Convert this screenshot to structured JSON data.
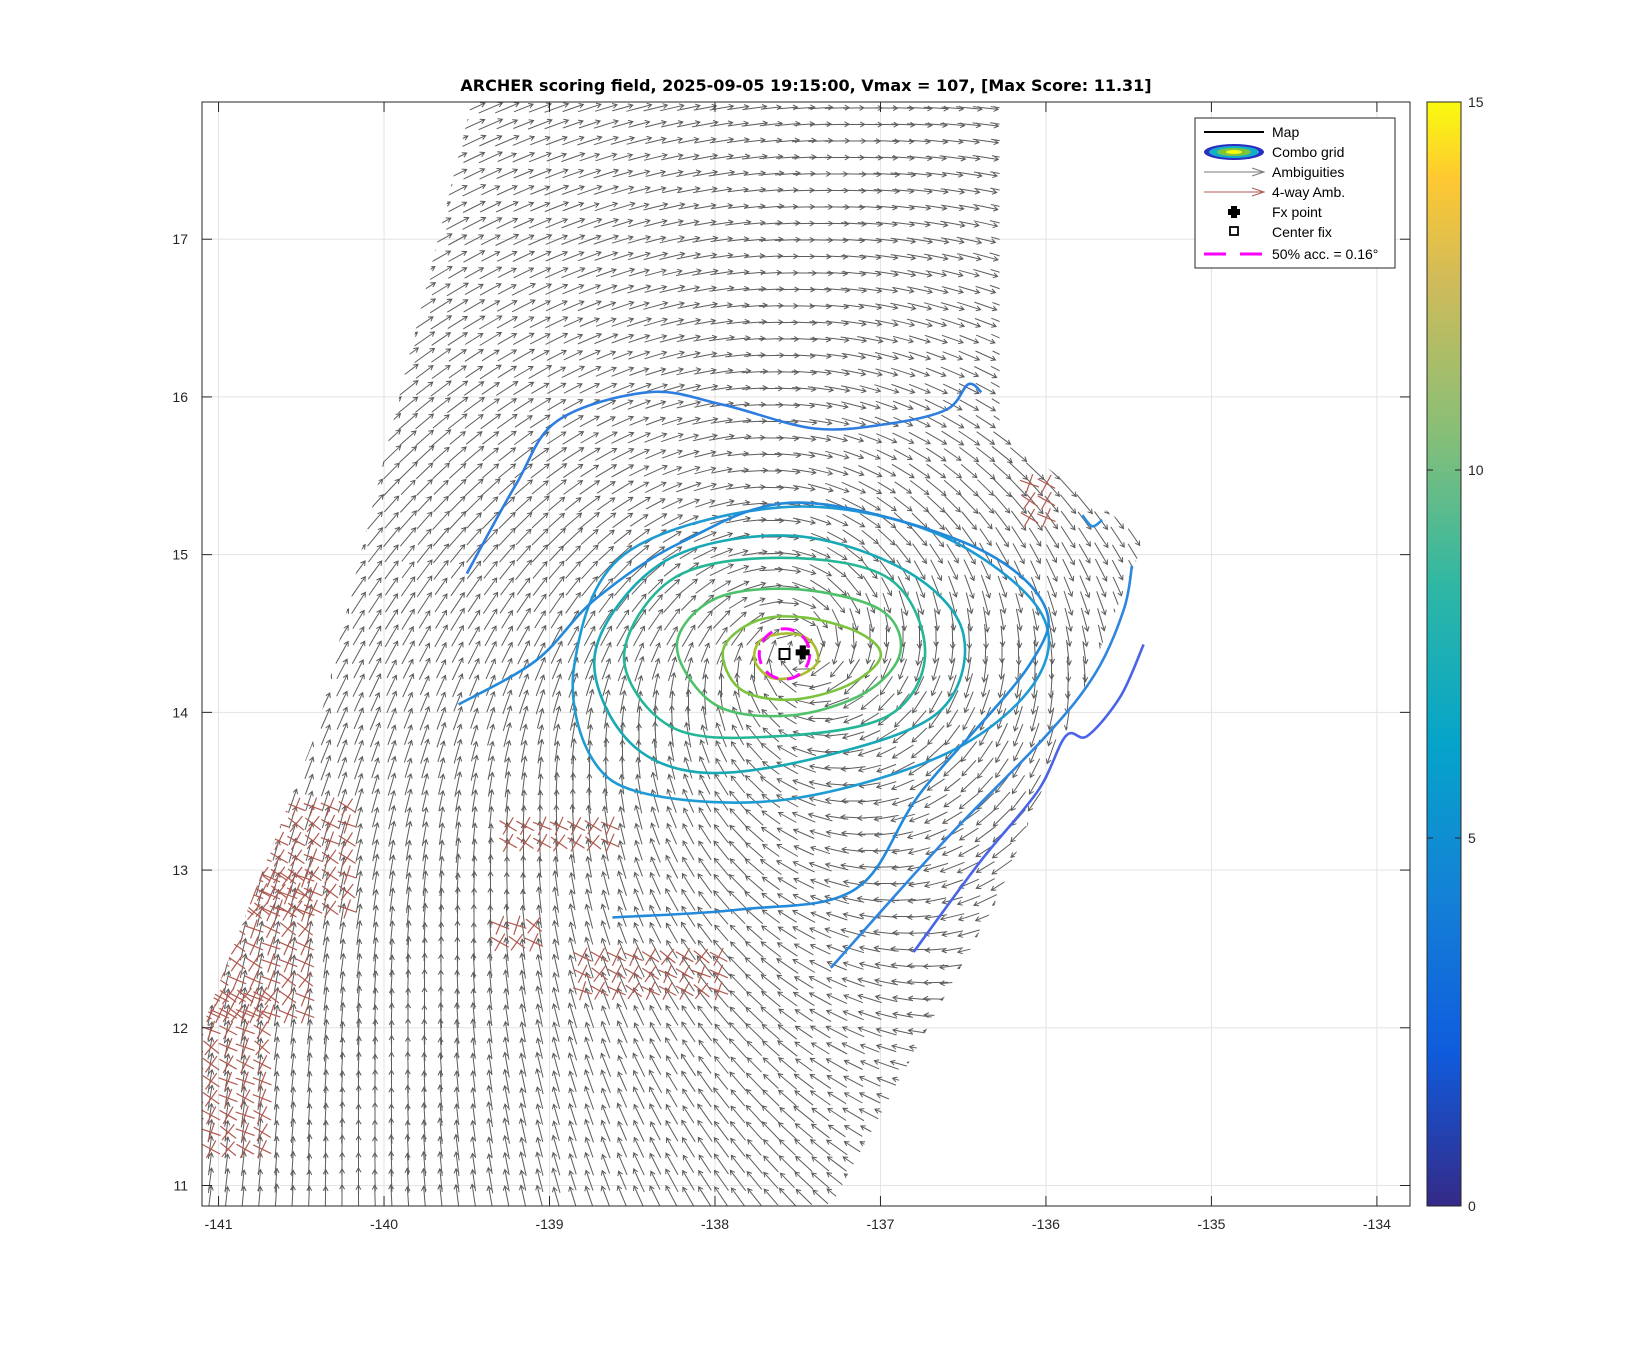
{
  "chart_data": {
    "type": "contour-quiver",
    "title": "ARCHER scoring field, 2025-09-05 19:15:00, Vmax = 107, [Max Score: 11.31]",
    "xlabel": "",
    "ylabel": "",
    "xlim": [
      -141.1,
      -133.8
    ],
    "ylim": [
      10.87,
      17.87
    ],
    "x_ticks": [
      -141,
      -140,
      -139,
      -138,
      -137,
      -136,
      -135,
      -134
    ],
    "y_ticks": [
      11,
      12,
      13,
      14,
      15,
      16,
      17
    ],
    "grid": true,
    "colorbar": {
      "min": 0,
      "max": 15,
      "ticks": [
        0,
        5,
        10,
        15
      ],
      "colormap": "parula"
    },
    "legend": {
      "placement": "top-right",
      "entries": [
        "Map",
        "Combo grid",
        "Ambiguities",
        "4-way Amb.",
        "Fx point",
        "Center fix",
        "50% acc. = 0.16°"
      ]
    },
    "fx_point": {
      "lon": -137.47,
      "lat": 14.38
    },
    "center_fix": {
      "lon": -137.58,
      "lat": 14.37
    },
    "accuracy_circle": {
      "lon": -137.58,
      "lat": 14.37,
      "radius_deg": 0.16
    },
    "vortex_center": {
      "lon": -137.5,
      "lat": 14.38
    },
    "swath": {
      "corners": [
        [
          -139.47,
          17.87
        ],
        [
          -136.28,
          17.87
        ],
        [
          -136.28,
          15.77
        ],
        [
          -135.4,
          15.1
        ],
        [
          -136.3,
          12.8
        ],
        [
          -137.3,
          10.87
        ],
        [
          -141.1,
          10.87
        ],
        [
          -141.1,
          12.0
        ],
        [
          -140.4,
          13.9
        ]
      ]
    },
    "contours": [
      {
        "level": 11,
        "color": "#a8be2c",
        "points": [
          [
            -137.76,
            14.33
          ],
          [
            -137.72,
            14.46
          ],
          [
            -137.55,
            14.5
          ],
          [
            -137.42,
            14.45
          ],
          [
            -137.38,
            14.32
          ],
          [
            -137.5,
            14.23
          ],
          [
            -137.66,
            14.22
          ]
        ]
      },
      {
        "level": 10,
        "color": "#7cc43e",
        "points": [
          [
            -137.95,
            14.4
          ],
          [
            -137.75,
            14.58
          ],
          [
            -137.45,
            14.6
          ],
          [
            -137.12,
            14.5
          ],
          [
            -137.0,
            14.35
          ],
          [
            -137.2,
            14.17
          ],
          [
            -137.55,
            14.08
          ],
          [
            -137.85,
            14.15
          ]
        ]
      },
      {
        "level": 9,
        "color": "#4fc16a",
        "points": [
          [
            -138.23,
            14.42
          ],
          [
            -138.0,
            14.72
          ],
          [
            -137.5,
            14.78
          ],
          [
            -137.0,
            14.65
          ],
          [
            -136.88,
            14.38
          ],
          [
            -137.1,
            14.12
          ],
          [
            -137.55,
            13.98
          ],
          [
            -138.0,
            14.05
          ]
        ]
      },
      {
        "level": 8,
        "color": "#25b597",
        "points": [
          [
            -138.55,
            14.35
          ],
          [
            -138.25,
            14.85
          ],
          [
            -137.6,
            14.98
          ],
          [
            -136.95,
            14.85
          ],
          [
            -136.73,
            14.38
          ],
          [
            -136.95,
            13.98
          ],
          [
            -137.6,
            13.85
          ],
          [
            -138.25,
            13.9
          ]
        ]
      },
      {
        "level": 7,
        "color": "#18a9b5",
        "points": [
          [
            -138.72,
            14.4
          ],
          [
            -138.3,
            14.96
          ],
          [
            -137.55,
            15.12
          ],
          [
            -136.85,
            14.9
          ],
          [
            -136.5,
            14.5
          ],
          [
            -136.65,
            14.0
          ],
          [
            -137.35,
            13.72
          ],
          [
            -138.1,
            13.62
          ],
          [
            -138.55,
            13.85
          ]
        ]
      },
      {
        "level": 6,
        "color": "#1f9bd3",
        "points": [
          [
            -138.85,
            14.3
          ],
          [
            -138.55,
            15.0
          ],
          [
            -137.6,
            15.3
          ],
          [
            -136.7,
            15.15
          ],
          [
            -136.06,
            14.68
          ],
          [
            -136.05,
            14.22
          ],
          [
            -136.58,
            13.75
          ],
          [
            -137.55,
            13.45
          ],
          [
            -138.4,
            13.48
          ],
          [
            -138.75,
            13.72
          ]
        ]
      },
      {
        "level": 5.5,
        "color": "#2389da",
        "points": [
          [
            -139.55,
            14.05
          ],
          [
            -139.08,
            14.33
          ],
          [
            -138.72,
            14.72
          ],
          [
            -138.2,
            15.08
          ],
          [
            -137.5,
            15.33
          ],
          [
            -136.5,
            15.08
          ],
          [
            -136.02,
            14.7
          ],
          [
            -136.1,
            14.3
          ],
          [
            -136.75,
            13.5
          ],
          [
            -137.15,
            12.88
          ],
          [
            -137.85,
            12.75
          ],
          [
            -138.62,
            12.7
          ]
        ]
      },
      {
        "level": 5,
        "color": "#2e7de0",
        "points": [
          [
            -139.5,
            14.88
          ],
          [
            -139.2,
            15.45
          ],
          [
            -138.95,
            15.85
          ],
          [
            -138.4,
            16.03
          ],
          [
            -137.95,
            15.95
          ],
          [
            -137.4,
            15.8
          ],
          [
            -136.95,
            15.83
          ],
          [
            -136.6,
            15.92
          ],
          [
            -136.47,
            16.08
          ],
          [
            -136.39,
            16.03
          ]
        ]
      },
      {
        "level": 4.5,
        "color": "#2f86de",
        "points": [
          [
            -137.3,
            12.38
          ],
          [
            -136.6,
            13.2
          ],
          [
            -136.0,
            13.85
          ],
          [
            -135.7,
            14.25
          ],
          [
            -135.53,
            14.65
          ],
          [
            -135.48,
            14.93
          ]
        ]
      },
      {
        "level": 4,
        "color": "#4a64e8",
        "points": [
          [
            -136.8,
            12.48
          ],
          [
            -136.4,
            13.05
          ],
          [
            -136.05,
            13.5
          ],
          [
            -135.88,
            13.85
          ],
          [
            -135.75,
            13.85
          ],
          [
            -135.55,
            14.1
          ],
          [
            -135.41,
            14.43
          ]
        ]
      },
      {
        "level": 5,
        "color": "#2b8fe0",
        "points": [
          [
            -135.78,
            15.25
          ],
          [
            -135.72,
            15.18
          ],
          [
            -135.66,
            15.22
          ]
        ]
      }
    ]
  }
}
